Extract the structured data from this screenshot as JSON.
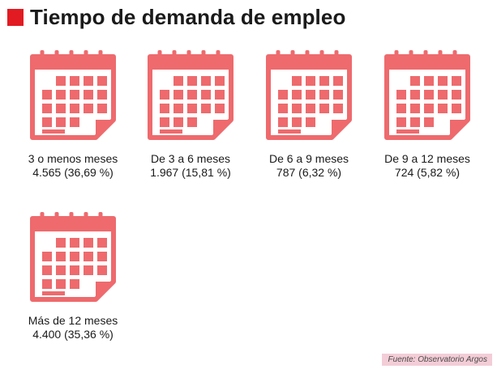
{
  "header": {
    "title": "Tiempo de demanda de empleo"
  },
  "colors": {
    "accent": "#e21b22",
    "icon": "#ee6a6d",
    "source_bg": "#f3cdd7"
  },
  "items": [
    {
      "icon": "calendar-icon",
      "label": "3 o menos meses",
      "value": "4.565 (36,69 %)"
    },
    {
      "icon": "calendar-icon",
      "label": "De 3 a 6 meses",
      "value": "1.967 (15,81 %)"
    },
    {
      "icon": "calendar-icon",
      "label": "De 6 a 9 meses",
      "value": "787 (6,32 %)"
    },
    {
      "icon": "calendar-icon",
      "label": "De 9 a 12 meses",
      "value": "724 (5,82 %)"
    },
    {
      "icon": "calendar-icon",
      "label": "Más de 12 meses",
      "value": "4.400 (35,36 %)"
    }
  ],
  "footer": {
    "source": "Fuente: Observatorio Argos"
  }
}
